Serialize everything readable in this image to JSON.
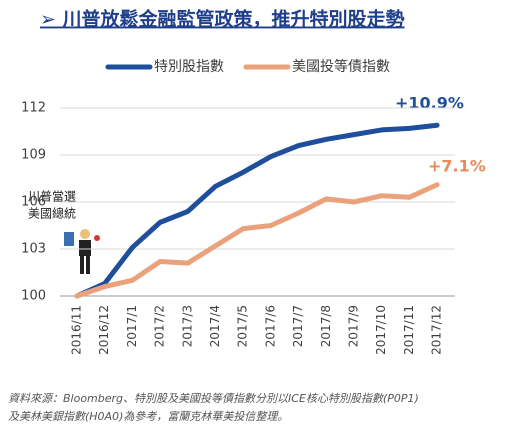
{
  "chart_data": {
    "type": "line",
    "title": "➢ 川普放鬆金融監管政策，推升特別股走勢",
    "categories": [
      "2016/11",
      "2016/12",
      "2017/1",
      "2017/2",
      "2017/3",
      "2017/4",
      "2017/5",
      "2017/6",
      "2017/7",
      "2017/8",
      "2017/9",
      "2017/10",
      "2017/11",
      "2017/12"
    ],
    "series": [
      {
        "name": "特別股指數",
        "color": "#1f4e9c",
        "values": [
          100,
          100.8,
          103.1,
          104.7,
          105.4,
          107.0,
          107.9,
          108.9,
          109.6,
          110.0,
          110.3,
          110.6,
          110.7,
          110.9
        ]
      },
      {
        "name": "美國投等債指數",
        "color": "#eba27c",
        "values": [
          100,
          100.6,
          101.0,
          102.2,
          102.1,
          103.2,
          104.3,
          104.5,
          105.3,
          106.2,
          106.0,
          106.4,
          106.3,
          107.1
        ]
      }
    ],
    "ylim": [
      100,
      112
    ],
    "yticks": [
      100,
      103,
      106,
      109,
      112
    ],
    "grid": true,
    "annotations": [
      "+10.9%",
      "+7.1%",
      "川普當選",
      "美國總統"
    ],
    "note": [
      "資料來源：Bloomberg、特別股及美國投等債指數分別以ICE核心特別股指數(P0P1)",
      "及美林美銀指數(H0A0)為參考，富蘭克林華美投信整理。"
    ]
  }
}
